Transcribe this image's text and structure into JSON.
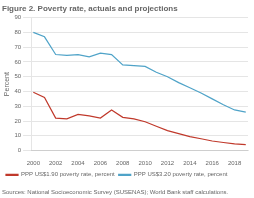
{
  "chart_data": {
    "type": "line",
    "title": "Figure 2. Poverty rate, actuals and projections",
    "y_label": "Percent",
    "annotations": [
      "Sources: National Socioeconomic Survey (SUSENAS); World Bank staff calculations."
    ],
    "x": [
      2000,
      2001,
      2002,
      2003,
      2004,
      2005,
      2006,
      2007,
      2008,
      2009,
      2010,
      2011,
      2012,
      2013,
      2014,
      2015,
      2016,
      2017,
      2018,
      2019
    ],
    "series": [
      {
        "name": "PPP US$1.90 poverty rate, percent",
        "color": "#c0392b",
        "values": [
          39.5,
          36.0,
          22.0,
          21.5,
          24.5,
          23.5,
          22.0,
          27.5,
          22.5,
          21.5,
          19.5,
          16.5,
          13.5,
          11.5,
          9.5,
          8.0,
          6.5,
          5.5,
          4.5,
          4.0
        ]
      },
      {
        "name": "PPP US$3.20 poverty rate, percent",
        "color": "#4fa3c8",
        "values": [
          80.0,
          77.0,
          65.0,
          64.5,
          65.0,
          63.5,
          66.0,
          65.0,
          58.0,
          57.5,
          57.0,
          53.0,
          50.0,
          46.0,
          42.5,
          39.0,
          35.0,
          31.0,
          27.5,
          26.0
        ]
      }
    ],
    "xlim": [
      1999.8,
      2019.2
    ],
    "xticks": [
      2000,
      2002,
      2004,
      2006,
      2008,
      2010,
      2012,
      2014,
      2016,
      2018
    ],
    "ylim": [
      0,
      90
    ],
    "yticks": [
      0,
      10,
      20,
      30,
      40,
      50,
      60,
      70,
      80,
      90
    ],
    "grid": true,
    "legend": "bottom"
  }
}
